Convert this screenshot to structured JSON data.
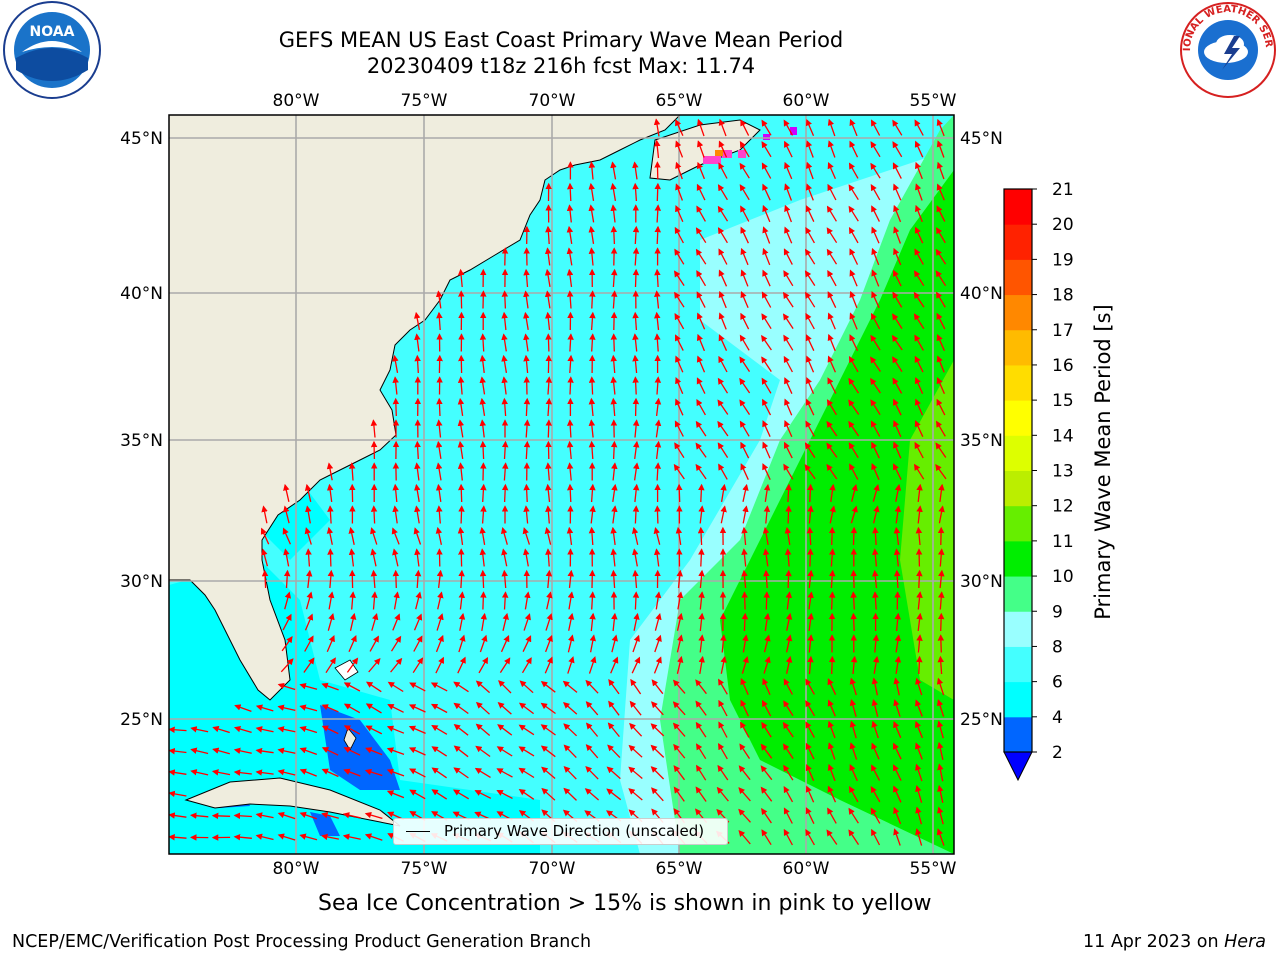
{
  "header": {
    "title_line1": "GEFS MEAN US East Coast Primary Wave Mean Period",
    "title_line2": "20230409 t18z 216h fcst   Max: 11.74"
  },
  "logos": {
    "noaa": {
      "text": "NOAA",
      "icon": "noaa-logo-icon"
    },
    "nws": {
      "text": "NATIONAL WEATHER SERVICE",
      "icon": "nws-logo-icon"
    }
  },
  "map": {
    "lon_labels": [
      "80°W",
      "75°W",
      "70°W",
      "65°W",
      "60°W",
      "55°W"
    ],
    "lat_labels": [
      "45°N",
      "40°N",
      "35°N",
      "30°N",
      "25°N"
    ],
    "extent": {
      "lon_min": -85,
      "lon_max": -54,
      "lat_min": 20.5,
      "lat_max": 46
    },
    "legend": "Primary Wave Direction (unscaled)",
    "arrow_color": "#ff0000",
    "land_color": "#efedde"
  },
  "colorbar": {
    "label": "Primary Wave Mean Period [s]",
    "ticks": [
      "2",
      "4",
      "6",
      "8",
      "9",
      "10",
      "11",
      "12",
      "13",
      "14",
      "15",
      "16",
      "17",
      "18",
      "19",
      "20",
      "21"
    ],
    "colors": [
      "#0066ff",
      "#00ffff",
      "#44ffff",
      "#99ffff",
      "#44ff88",
      "#00ee00",
      "#66ee00",
      "#bbee00",
      "#ddff00",
      "#ffff00",
      "#ffdd00",
      "#ffbb00",
      "#ff8800",
      "#ff5500",
      "#ff2200",
      "#ff0000"
    ],
    "under_color": "#0000ff"
  },
  "caption": "Sea Ice Concentration > 15% is shown in pink to yellow",
  "footer": {
    "left": "NCEP/EMC/Verification Post Processing Product Generation Branch",
    "right_date": "11 Apr 2023 on ",
    "right_host": "Hera"
  }
}
